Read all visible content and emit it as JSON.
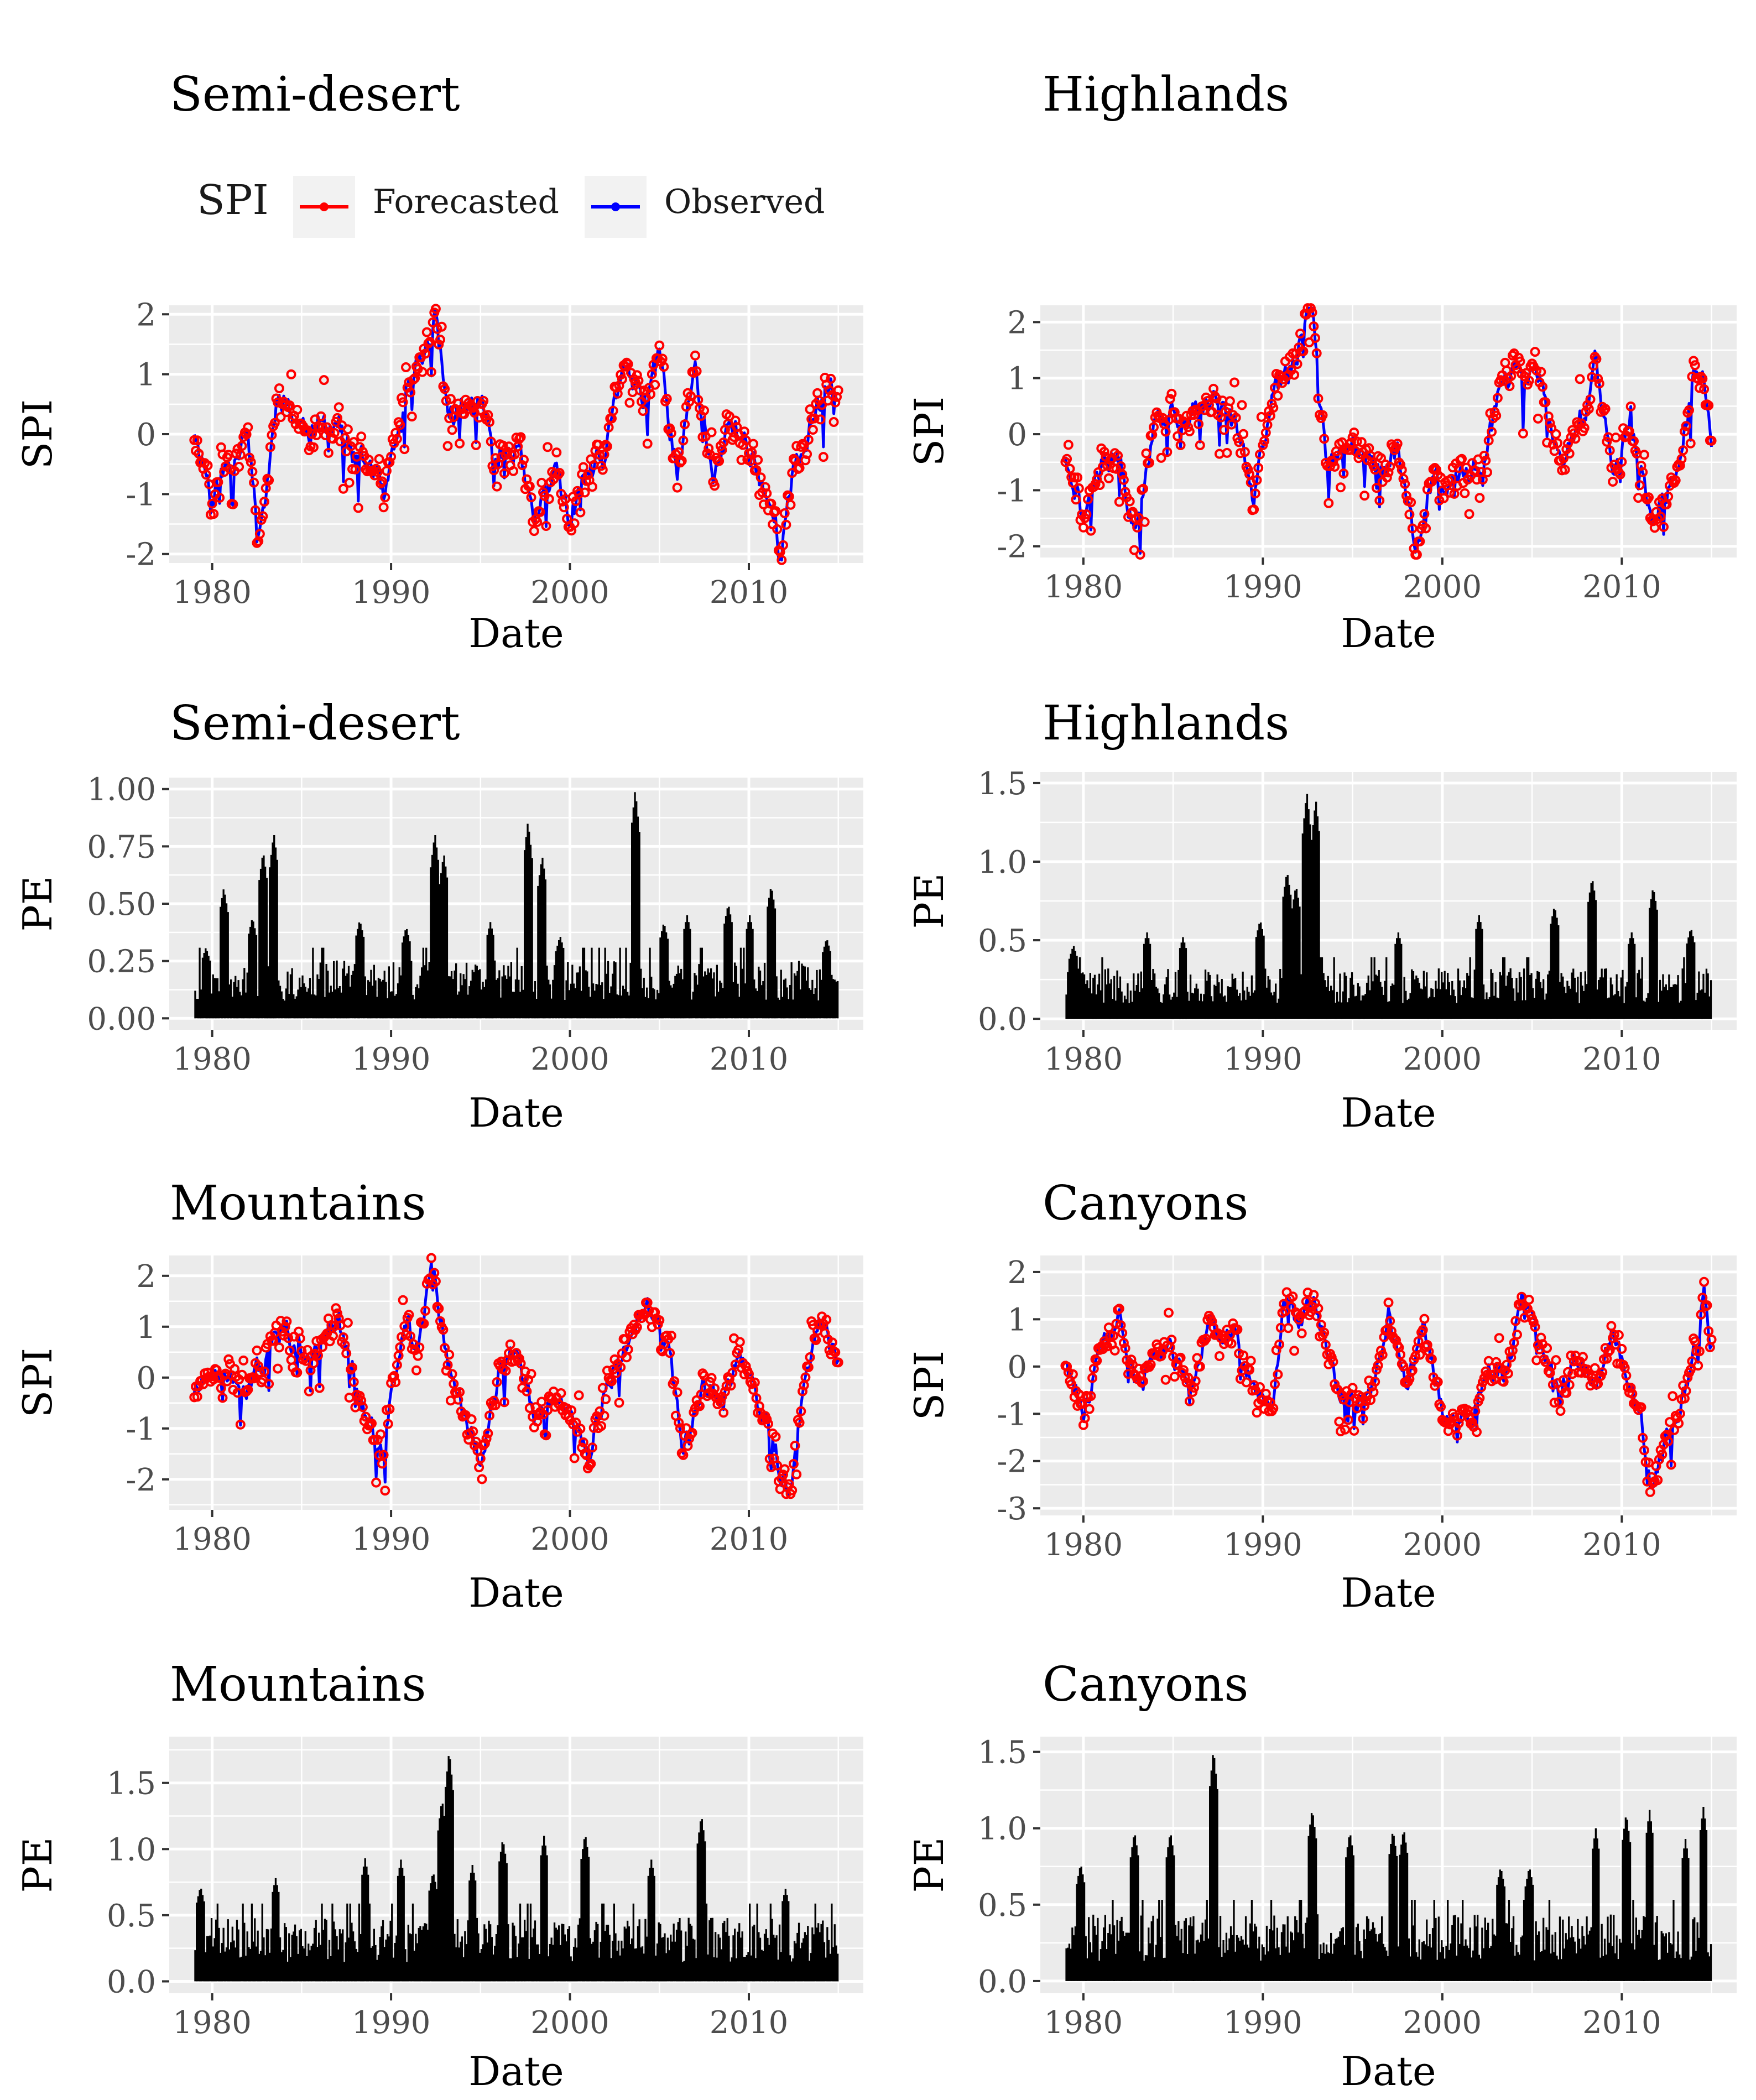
{
  "figure": {
    "legend": {
      "title": "SPI",
      "entries": [
        {
          "label": "Forecasted",
          "color": "#ff0000"
        },
        {
          "label": "Observed",
          "color": "#0000ff"
        }
      ]
    },
    "colors": {
      "forecasted": "#ff0000",
      "observed": "#0000ff",
      "pe_bar": "#000000",
      "panel_bg": "#ebebeb",
      "grid": "#ffffff"
    }
  },
  "chart_data": [
    {
      "id": "semi-desert-spi",
      "type": "line",
      "title": "Semi-desert",
      "xlabel": "Date",
      "ylabel": "SPI",
      "xlim": [
        1977.6,
        2016.4
      ],
      "ylim": [
        -2.15,
        2.15
      ],
      "xticks": [
        1980,
        1990,
        2000,
        2010
      ],
      "yticks": [
        -2,
        -1,
        0,
        1,
        2
      ],
      "ytick_labels": [
        "-2",
        "-1",
        "0",
        "1",
        "2"
      ],
      "date_range": [
        1979.0,
        2015.0
      ],
      "anchors": [
        [
          1979,
          0.1
        ],
        [
          1980,
          -1.0
        ],
        [
          1981,
          -0.5
        ],
        [
          1982,
          0.3
        ],
        [
          1982.5,
          -1.7
        ],
        [
          1983,
          -1.0
        ],
        [
          1983.7,
          0.8
        ],
        [
          1985,
          0.1
        ],
        [
          1986,
          0.1
        ],
        [
          1987,
          0.2
        ],
        [
          1988,
          -0.5
        ],
        [
          1989,
          -0.5
        ],
        [
          1989.6,
          -1.2
        ],
        [
          1991,
          0.8
        ],
        [
          1992,
          1.5
        ],
        [
          1992.5,
          2.0
        ],
        [
          1993.2,
          0.3
        ],
        [
          1995,
          0.5
        ],
        [
          1996,
          -0.3
        ],
        [
          1997,
          -0.2
        ],
        [
          1998,
          -1.5
        ],
        [
          1999,
          -0.6
        ],
        [
          2000,
          -1.4
        ],
        [
          2001,
          -0.7
        ],
        [
          2002,
          -0.4
        ],
        [
          2003,
          1.3
        ],
        [
          2004,
          0.4
        ],
        [
          2005,
          1.2
        ],
        [
          2006,
          -0.6
        ],
        [
          2007,
          1.0
        ],
        [
          2008,
          -0.8
        ],
        [
          2009,
          0.2
        ],
        [
          2010,
          -0.2
        ],
        [
          2011,
          -1.0
        ],
        [
          2011.8,
          -1.9
        ],
        [
          2012.5,
          -0.7
        ],
        [
          2014,
          0.6
        ],
        [
          2014.5,
          1.0
        ],
        [
          2015,
          0.4
        ]
      ],
      "obs_seed": 11,
      "fc_seed": 12
    },
    {
      "id": "highlands-spi",
      "type": "line",
      "title": "Highlands",
      "xlabel": "Date",
      "ylabel": "SPI",
      "xlim": [
        1977.6,
        2016.4
      ],
      "ylim": [
        -2.2,
        2.3
      ],
      "xticks": [
        1980,
        1990,
        2000,
        2010
      ],
      "yticks": [
        -2,
        -1,
        0,
        1,
        2
      ],
      "ytick_labels": [
        "-2",
        "-1",
        "0",
        "1",
        "2"
      ],
      "date_range": [
        1979.0,
        2015.0
      ],
      "anchors": [
        [
          1979,
          -0.3
        ],
        [
          1980,
          -1.5
        ],
        [
          1981,
          -0.5
        ],
        [
          1982,
          -0.3
        ],
        [
          1982.8,
          -1.8
        ],
        [
          1984,
          0.3
        ],
        [
          1986,
          0.3
        ],
        [
          1987.5,
          0.8
        ],
        [
          1988.5,
          0.1
        ],
        [
          1989.5,
          -1.2
        ],
        [
          1990.5,
          0.8
        ],
        [
          1991.5,
          1.2
        ],
        [
          1992.3,
          1.8
        ],
        [
          1992.8,
          2.2
        ],
        [
          1993.5,
          -0.6
        ],
        [
          1995,
          -0.2
        ],
        [
          1996.5,
          -0.6
        ],
        [
          1997.5,
          -0.3
        ],
        [
          1998.5,
          -2.0
        ],
        [
          1999.5,
          -0.8
        ],
        [
          2001,
          -0.8
        ],
        [
          2002.5,
          -0.3
        ],
        [
          2003.5,
          1.1
        ],
        [
          2004.5,
          1.0
        ],
        [
          2005.2,
          1.3
        ],
        [
          2006.5,
          -0.6
        ],
        [
          2008,
          0.5
        ],
        [
          2008.5,
          1.2
        ],
        [
          2009.5,
          -0.8
        ],
        [
          2010.5,
          0.5
        ],
        [
          2011.5,
          -1.5
        ],
        [
          2013,
          -0.8
        ],
        [
          2014,
          1.0
        ],
        [
          2014.5,
          1.2
        ],
        [
          2015,
          -0.1
        ]
      ],
      "obs_seed": 21,
      "fc_seed": 22
    },
    {
      "id": "semi-desert-pe",
      "type": "bar",
      "title": "Semi-desert",
      "xlabel": "Date",
      "ylabel": "PE",
      "xlim": [
        1977.6,
        2016.4
      ],
      "ylim": [
        -0.05,
        1.05
      ],
      "xticks": [
        1980,
        1990,
        2000,
        2010
      ],
      "yticks": [
        0,
        0.25,
        0.5,
        0.75,
        1.0
      ],
      "ytick_labels": [
        "0.00",
        "0.25",
        "0.50",
        "0.75",
        "1.00"
      ],
      "date_range": [
        1979.0,
        2015.0
      ],
      "peaks": [
        [
          1979.6,
          0.31
        ],
        [
          1980.6,
          0.57
        ],
        [
          1982.2,
          0.44
        ],
        [
          1982.8,
          0.73
        ],
        [
          1983.4,
          0.81
        ],
        [
          1988.2,
          0.43
        ],
        [
          1990.8,
          0.4
        ],
        [
          1992.4,
          0.81
        ],
        [
          1992.9,
          0.72
        ],
        [
          1995.5,
          0.42
        ],
        [
          1997.6,
          0.86
        ],
        [
          1998.4,
          0.71
        ],
        [
          1999.4,
          0.36
        ],
        [
          2003.6,
          1.0
        ],
        [
          2005.2,
          0.42
        ],
        [
          2006.5,
          0.45
        ],
        [
          2008.8,
          0.5
        ],
        [
          2010.0,
          0.45
        ],
        [
          2011.2,
          0.58
        ],
        [
          2014.3,
          0.35
        ]
      ],
      "base": 0.22,
      "seed": 31
    },
    {
      "id": "highlands-pe",
      "type": "bar",
      "title": "Highlands",
      "xlabel": "Date",
      "ylabel": "PE",
      "xlim": [
        1977.6,
        2016.4
      ],
      "ylim": [
        -0.07,
        1.57
      ],
      "xticks": [
        1980,
        1990,
        2000,
        2010
      ],
      "yticks": [
        0,
        0.5,
        1.0,
        1.5
      ],
      "ytick_labels": [
        "0.0",
        "0.5",
        "1.0",
        "1.5"
      ],
      "date_range": [
        1979.0,
        2015.0
      ],
      "peaks": [
        [
          1979.4,
          0.47
        ],
        [
          1983.5,
          0.55
        ],
        [
          1985.5,
          0.52
        ],
        [
          1989.8,
          0.63
        ],
        [
          1991.3,
          0.94
        ],
        [
          1991.8,
          0.85
        ],
        [
          1992.4,
          1.45
        ],
        [
          1992.9,
          1.4
        ],
        [
          1997.5,
          0.55
        ],
        [
          2002.0,
          0.66
        ],
        [
          2006.2,
          0.72
        ],
        [
          2008.3,
          0.9
        ],
        [
          2010.5,
          0.55
        ],
        [
          2011.7,
          0.84
        ],
        [
          2013.8,
          0.58
        ]
      ],
      "base": 0.28,
      "seed": 41
    },
    {
      "id": "mountains-spi",
      "type": "line",
      "title": "Mountains",
      "xlabel": "Date",
      "ylabel": "SPI",
      "xlim": [
        1977.6,
        2016.4
      ],
      "ylim": [
        -2.6,
        2.4
      ],
      "xticks": [
        1980,
        1990,
        2000,
        2010
      ],
      "yticks": [
        -2,
        -1,
        0,
        1,
        2
      ],
      "ytick_labels": [
        "-2",
        "-1",
        "0",
        "1",
        "2"
      ],
      "date_range": [
        1979.0,
        2015.0
      ],
      "anchors": [
        [
          1979,
          -0.2
        ],
        [
          1980,
          -0.1
        ],
        [
          1981,
          0.2
        ],
        [
          1982,
          -0.3
        ],
        [
          1983,
          0.4
        ],
        [
          1984,
          1.0
        ],
        [
          1985.5,
          0.3
        ],
        [
          1987,
          1.2
        ],
        [
          1988,
          0.0
        ],
        [
          1989.5,
          -1.5
        ],
        [
          1990.8,
          1.2
        ],
        [
          1991.5,
          0.5
        ],
        [
          1992.3,
          2.2
        ],
        [
          1993.2,
          0.3
        ],
        [
          1994.2,
          -0.7
        ],
        [
          1995,
          -1.7
        ],
        [
          1996,
          0.0
        ],
        [
          1997,
          0.6
        ],
        [
          1998,
          -0.7
        ],
        [
          1999,
          -0.6
        ],
        [
          2000.5,
          -0.8
        ],
        [
          2001,
          -1.7
        ],
        [
          2002,
          -0.2
        ],
        [
          2003,
          0.5
        ],
        [
          2004.3,
          1.5
        ],
        [
          2005.5,
          0.5
        ],
        [
          2006.3,
          -1.5
        ],
        [
          2007.5,
          -0.2
        ],
        [
          2008.5,
          -0.5
        ],
        [
          2009.5,
          0.4
        ],
        [
          2010.5,
          -0.5
        ],
        [
          2011.5,
          -1.5
        ],
        [
          2012.3,
          -2.3
        ],
        [
          2013,
          -0.5
        ],
        [
          2014,
          1.0
        ],
        [
          2015,
          0.3
        ]
      ],
      "obs_seed": 51,
      "fc_seed": 52
    },
    {
      "id": "canyons-spi",
      "type": "line",
      "title": "Canyons",
      "xlabel": "Date",
      "ylabel": "SPI",
      "xlim": [
        1977.6,
        2016.4
      ],
      "ylim": [
        -3.15,
        2.35
      ],
      "xticks": [
        1980,
        1990,
        2000,
        2010
      ],
      "yticks": [
        -3,
        -2,
        -1,
        0,
        1,
        2
      ],
      "ytick_labels": [
        "-3",
        "-2",
        "-1",
        "0",
        "1",
        "2"
      ],
      "date_range": [
        1979.0,
        2015.0
      ],
      "anchors": [
        [
          1979,
          0.2
        ],
        [
          1980,
          -1.0
        ],
        [
          1981,
          0.3
        ],
        [
          1982,
          1.0
        ],
        [
          1983,
          -0.5
        ],
        [
          1984.5,
          0.5
        ],
        [
          1986,
          -0.5
        ],
        [
          1987,
          0.8
        ],
        [
          1988.5,
          0.6
        ],
        [
          1989.5,
          -0.5
        ],
        [
          1990.5,
          -0.8
        ],
        [
          1991.2,
          1.5
        ],
        [
          1992,
          0.8
        ],
        [
          1992.8,
          1.3
        ],
        [
          1994,
          -0.3
        ],
        [
          1995,
          -0.8
        ],
        [
          1996,
          -0.5
        ],
        [
          1997,
          1.0
        ],
        [
          1998,
          -0.3
        ],
        [
          1999,
          0.9
        ],
        [
          2000,
          -1.1
        ],
        [
          2001,
          -0.9
        ],
        [
          2001.5,
          -1.4
        ],
        [
          2002.5,
          0.0
        ],
        [
          2003.5,
          -0.2
        ],
        [
          2004.5,
          1.5
        ],
        [
          2005.5,
          0.5
        ],
        [
          2006.5,
          -0.7
        ],
        [
          2007.5,
          0.2
        ],
        [
          2008.5,
          -0.5
        ],
        [
          2009.5,
          0.8
        ],
        [
          2010.3,
          -0.3
        ],
        [
          2011,
          -1.0
        ],
        [
          2011.7,
          -2.6
        ],
        [
          2012.5,
          -1.5
        ],
        [
          2013.5,
          -0.5
        ],
        [
          2014.2,
          0.6
        ],
        [
          2014.6,
          1.5
        ],
        [
          2015,
          0.4
        ]
      ],
      "obs_seed": 61,
      "fc_seed": 62
    },
    {
      "id": "mountains-pe",
      "type": "bar",
      "title": "Mountains",
      "xlabel": "Date",
      "ylabel": "PE",
      "xlim": [
        1977.6,
        2016.4
      ],
      "ylim": [
        -0.09,
        1.85
      ],
      "xticks": [
        1980,
        1990,
        2000,
        2010
      ],
      "yticks": [
        0,
        0.5,
        1.0,
        1.5
      ],
      "ytick_labels": [
        "0.0",
        "0.5",
        "1.0",
        "1.5"
      ],
      "date_range": [
        1979.0,
        2015.0
      ],
      "peaks": [
        [
          1979.3,
          0.72
        ],
        [
          1983.5,
          0.78
        ],
        [
          1988.5,
          0.93
        ],
        [
          1990.5,
          0.92
        ],
        [
          1992.3,
          0.83
        ],
        [
          1992.8,
          1.38
        ],
        [
          1993.2,
          1.75
        ],
        [
          1994.5,
          0.88
        ],
        [
          1996.2,
          1.08
        ],
        [
          1998.5,
          1.1
        ],
        [
          2000.8,
          1.12
        ],
        [
          2004.5,
          0.92
        ],
        [
          2007.3,
          1.26
        ],
        [
          2012.0,
          0.7
        ]
      ],
      "base": 0.42,
      "seed": 71
    },
    {
      "id": "canyons-pe",
      "type": "bar",
      "title": "Canyons",
      "xlabel": "Date",
      "ylabel": "PE",
      "xlim": [
        1977.6,
        2016.4
      ],
      "ylim": [
        -0.08,
        1.6
      ],
      "xticks": [
        1980,
        1990,
        2000,
        2010
      ],
      "yticks": [
        0,
        0.5,
        1.0,
        1.5
      ],
      "ytick_labels": [
        "0.0",
        "0.5",
        "1.0",
        "1.5"
      ],
      "date_range": [
        1979.0,
        2015.0
      ],
      "peaks": [
        [
          1979.8,
          0.77
        ],
        [
          1982.8,
          0.98
        ],
        [
          1984.8,
          0.98
        ],
        [
          1987.2,
          1.52
        ],
        [
          1992.7,
          1.13
        ],
        [
          1994.8,
          0.98
        ],
        [
          1997.2,
          0.99
        ],
        [
          1997.8,
          1.0
        ],
        [
          2003.2,
          0.75
        ],
        [
          2004.8,
          0.75
        ],
        [
          2008.5,
          1.0
        ],
        [
          2010.2,
          1.1
        ],
        [
          2011.5,
          1.12
        ],
        [
          2013.5,
          0.93
        ],
        [
          2014.5,
          1.14
        ]
      ],
      "base": 0.38,
      "seed": 81
    }
  ]
}
